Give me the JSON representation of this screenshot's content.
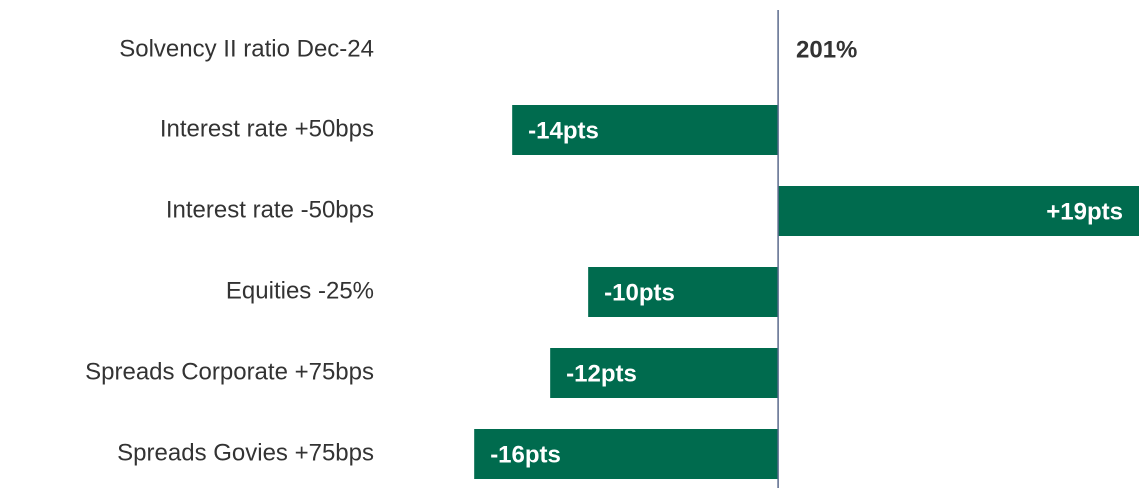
{
  "chart_data": {
    "type": "bar",
    "orientation": "horizontal",
    "base": {
      "name": "Solvency II ratio Dec-24",
      "value_label": "201%"
    },
    "categories": [
      "Interest rate +50bps",
      "Interest rate -50bps",
      "Equities -25%",
      "Spreads Corporate +75bps",
      "Spreads Govies +75bps"
    ],
    "values": [
      -14,
      19,
      -10,
      -12,
      -16
    ],
    "value_labels": [
      "-14pts",
      "+19pts",
      "-10pts",
      "-12pts",
      "-16pts"
    ],
    "color": "#006b4e",
    "xlim": [
      -17.8,
      19
    ]
  }
}
